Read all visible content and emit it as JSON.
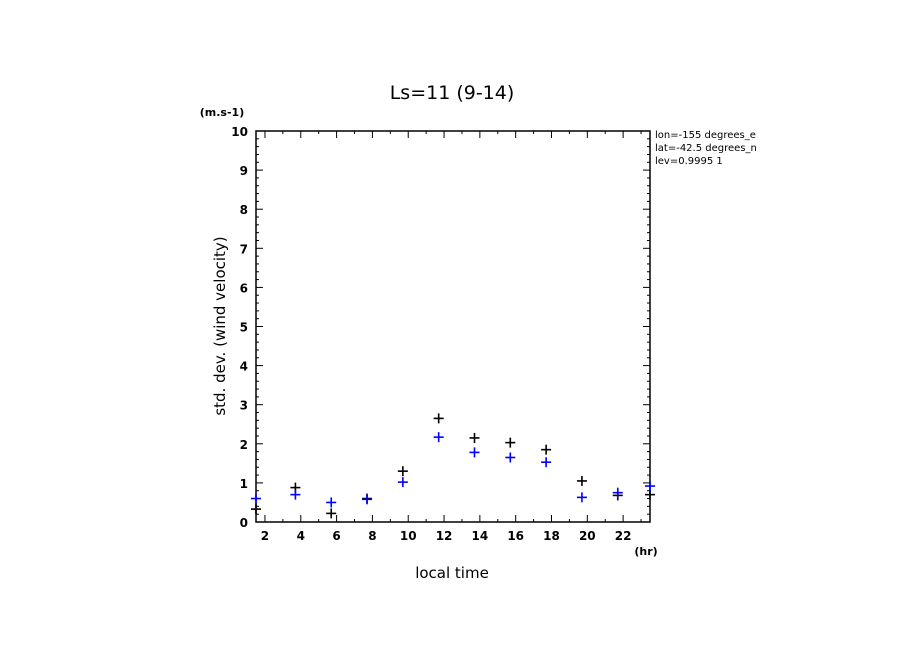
{
  "chart_data": {
    "type": "scatter",
    "title": "Ls=11 (9-14)",
    "xlabel": "local time",
    "ylabel": "std. dev. (wind velocity)",
    "xunit": "(hr)",
    "yunit": "(m.s-1)",
    "xlim": [
      1.5,
      23.5
    ],
    "ylim": [
      0,
      10
    ],
    "xticks": [
      2,
      4,
      6,
      8,
      10,
      12,
      14,
      16,
      18,
      20,
      22
    ],
    "yticks": [
      0,
      1,
      2,
      3,
      4,
      5,
      6,
      7,
      8,
      9,
      10
    ],
    "grid": false,
    "annotations": [
      "lon=-155 degrees_e",
      "lat=-42.5 degrees_n",
      "lev=0.9995 1"
    ],
    "series": [
      {
        "color": "#000000",
        "marker": "+",
        "x": [
          1.5,
          3.7,
          5.7,
          7.7,
          9.7,
          11.7,
          13.7,
          15.7,
          17.7,
          19.7,
          21.7,
          23.5
        ],
        "y": [
          0.33,
          0.88,
          0.22,
          0.6,
          1.3,
          2.65,
          2.15,
          2.03,
          1.85,
          1.05,
          0.68,
          0.7
        ]
      },
      {
        "color": "#0000ff",
        "marker": "+",
        "x": [
          1.5,
          3.7,
          5.7,
          7.7,
          9.7,
          11.7,
          13.7,
          15.7,
          17.7,
          19.7,
          21.7,
          23.5
        ],
        "y": [
          0.6,
          0.7,
          0.5,
          0.58,
          1.02,
          2.17,
          1.78,
          1.65,
          1.53,
          0.63,
          0.75,
          0.92
        ]
      }
    ]
  }
}
